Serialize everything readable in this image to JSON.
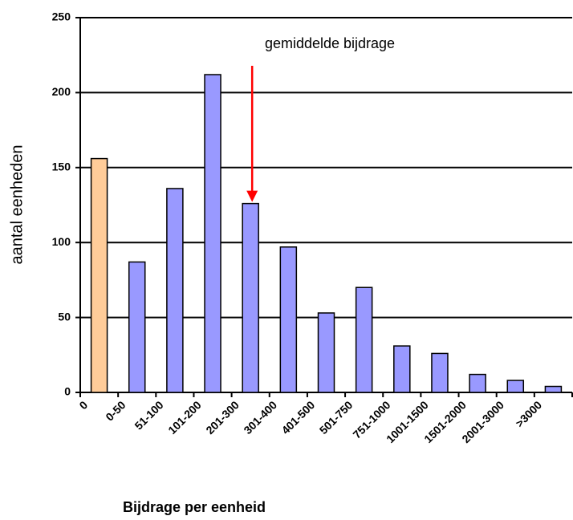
{
  "chart_data": {
    "type": "bar",
    "annotation": "gemiddelde bijdrage",
    "x_label": "Bijdrage per eenheid",
    "y_label": "aantal eenheden",
    "categories": [
      "0",
      "0-50",
      "51-100",
      "101-200",
      "201-300",
      "301-400",
      "401-500",
      "501-750",
      "751-1000",
      "1001-1500",
      "1501-2000",
      "2001-3000",
      ">3000"
    ],
    "values": [
      156,
      87,
      136,
      212,
      126,
      97,
      53,
      70,
      31,
      26,
      12,
      8,
      4
    ],
    "colors": [
      "#ffcc99",
      "#9999ff",
      "#9999ff",
      "#9999ff",
      "#9999ff",
      "#9999ff",
      "#9999ff",
      "#9999ff",
      "#9999ff",
      "#9999ff",
      "#9999ff",
      "#9999ff",
      "#9999ff"
    ],
    "ylim": [
      0,
      250
    ],
    "yticks": [
      0,
      50,
      100,
      150,
      200,
      250
    ],
    "grid": true
  }
}
